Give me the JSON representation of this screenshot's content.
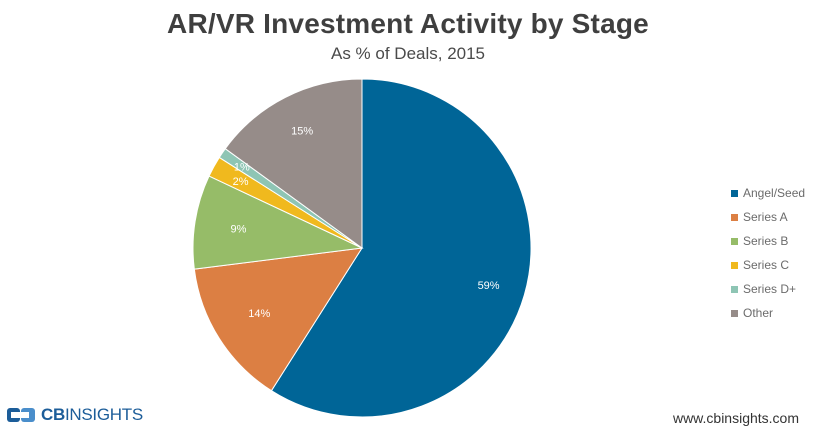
{
  "chart_data": {
    "type": "pie",
    "title": "AR/VR Investment Activity by Stage",
    "subtitle": "As % of Deals, 2015",
    "categories": [
      "Angel/Seed",
      "Series A",
      "Series B",
      "Series C",
      "Series D+",
      "Other"
    ],
    "values": [
      59,
      14,
      9,
      2,
      1,
      15
    ],
    "labels": [
      "59%",
      "14%",
      "9%",
      "2%",
      "1%",
      "15%"
    ],
    "colors": [
      "#006597",
      "#dc7f43",
      "#96bc68",
      "#f0b91e",
      "#8ec5b4",
      "#968c89"
    ],
    "legend_position": "right"
  },
  "footer": {
    "logo_text": "CB",
    "logo_text_light": "INSIGHTS",
    "website": "www.cbinsights.com"
  }
}
